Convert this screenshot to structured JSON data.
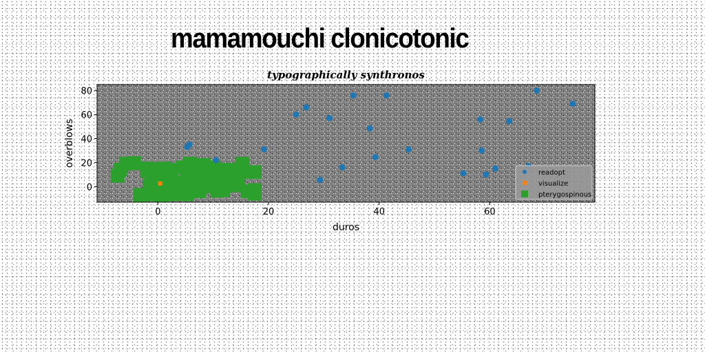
{
  "figure": {
    "suptitle": "mamamouchi clonicotonic"
  },
  "colors": {
    "plot_background": "#808080",
    "readopt": "#1f77b4",
    "visualize": "#ff7f0e",
    "pterygospinous": "#2ca02c"
  },
  "chart_data": {
    "type": "scatter",
    "title": "typographically synthronos",
    "xlabel": "duros",
    "ylabel": "overblows",
    "xlim": [
      -11,
      79
    ],
    "ylim": [
      -13,
      85
    ],
    "xticks": [
      0,
      20,
      40,
      60
    ],
    "yticks": [
      0,
      20,
      40,
      60,
      80
    ],
    "grid": false,
    "legend_position": "lower right",
    "series": [
      {
        "name": "readopt",
        "marker": "circle",
        "points": [
          [
            5.3,
            33
          ],
          [
            5.7,
            35
          ],
          [
            10.5,
            22
          ],
          [
            19.2,
            31
          ],
          [
            25,
            60
          ],
          [
            26.8,
            66
          ],
          [
            31,
            57
          ],
          [
            33.3,
            16
          ],
          [
            29.3,
            5.5
          ],
          [
            35.3,
            76
          ],
          [
            38.3,
            48.5
          ],
          [
            39.3,
            24.5
          ],
          [
            41.3,
            76
          ],
          [
            45.3,
            31
          ],
          [
            55.2,
            11
          ],
          [
            58.3,
            56
          ],
          [
            58.5,
            30
          ],
          [
            59.3,
            10
          ],
          [
            61,
            15
          ],
          [
            63.5,
            54.5
          ],
          [
            67,
            17
          ],
          [
            68.5,
            80
          ],
          [
            75,
            69
          ]
        ]
      },
      {
        "name": "visualize",
        "marker": "square",
        "points": [
          [
            0.4,
            2.5
          ]
        ]
      },
      {
        "name": "pterygospinous",
        "marker": "square",
        "points": [
          [
            -5.8,
            19
          ],
          [
            -4.3,
            19.5
          ],
          [
            -6.8,
            14
          ],
          [
            -7.3,
            9
          ],
          [
            -2,
            15
          ],
          [
            -0.5,
            14.5
          ],
          [
            1,
            13
          ],
          [
            1,
            15
          ],
          [
            2.5,
            12
          ],
          [
            2.5,
            14
          ],
          [
            -2,
            13
          ],
          [
            -1,
            8
          ],
          [
            0.5,
            7
          ],
          [
            -0.5,
            2
          ],
          [
            -1.5,
            1
          ],
          [
            1.5,
            1
          ],
          [
            -3.2,
            -7
          ],
          [
            -1.5,
            -6.5
          ],
          [
            0.5,
            -7.5
          ],
          [
            2.2,
            -6.5
          ],
          [
            4,
            -6
          ],
          [
            4.5,
            16
          ],
          [
            5.3,
            13
          ],
          [
            5.8,
            19
          ],
          [
            6.5,
            17
          ],
          [
            8.2,
            18
          ],
          [
            8.2,
            14
          ],
          [
            6.5,
            11
          ],
          [
            3.5,
            3
          ],
          [
            5.3,
            3
          ],
          [
            7,
            5
          ],
          [
            6.2,
            7
          ],
          [
            7.5,
            8
          ],
          [
            6.2,
            -1
          ],
          [
            7.5,
            -4
          ],
          [
            5.2,
            -6.5
          ],
          [
            8.5,
            0
          ],
          [
            10,
            16
          ],
          [
            10.8,
            12
          ],
          [
            10.5,
            8
          ],
          [
            10,
            3
          ],
          [
            10.8,
            -3.5
          ],
          [
            12.5,
            14
          ],
          [
            12.5,
            11
          ],
          [
            12.5,
            6
          ],
          [
            12,
            0
          ],
          [
            11.8,
            -3
          ],
          [
            14,
            14
          ],
          [
            14.5,
            8
          ],
          [
            14.5,
            1
          ],
          [
            15.3,
            19
          ],
          [
            15.8,
            12
          ],
          [
            16.2,
            -4
          ],
          [
            17.5,
            -6
          ],
          [
            17.5,
            -3
          ],
          [
            17.5,
            12
          ]
        ]
      }
    ]
  }
}
